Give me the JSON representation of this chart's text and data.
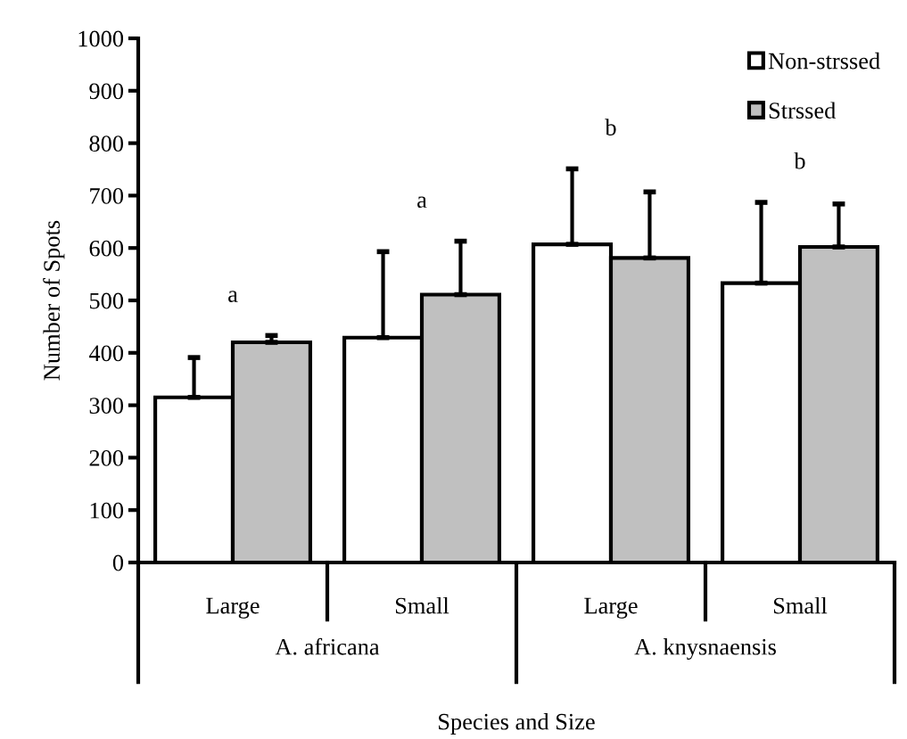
{
  "chart_data": {
    "type": "bar",
    "xlabel": "Species and Size",
    "ylabel": "Number of Spots",
    "categories": [
      "Large",
      "Small",
      "Large",
      "Small"
    ],
    "series": [
      {
        "name": "Non-strssed",
        "color": "#ffffff",
        "values": [
          315,
          429,
          607,
          533
        ],
        "errors": [
          [
            315,
            391
          ],
          [
            429,
            593
          ],
          [
            607,
            751
          ],
          [
            533,
            687
          ]
        ]
      },
      {
        "name": "Strssed",
        "color": "#c0c0c0",
        "values": [
          420,
          511,
          581,
          602
        ],
        "errors": [
          [
            420,
            433
          ],
          [
            511,
            613
          ],
          [
            581,
            707
          ],
          [
            602,
            684
          ]
        ]
      }
    ],
    "ylim": [
      0,
      1000
    ],
    "yticks": [
      0,
      100,
      200,
      300,
      400,
      500,
      600,
      700,
      800,
      900,
      1000
    ],
    "legend": "top right",
    "grid": false,
    "annotations": [
      "a",
      "a",
      "b",
      "b",
      "A. africana",
      "A. knysnaensis"
    ]
  }
}
